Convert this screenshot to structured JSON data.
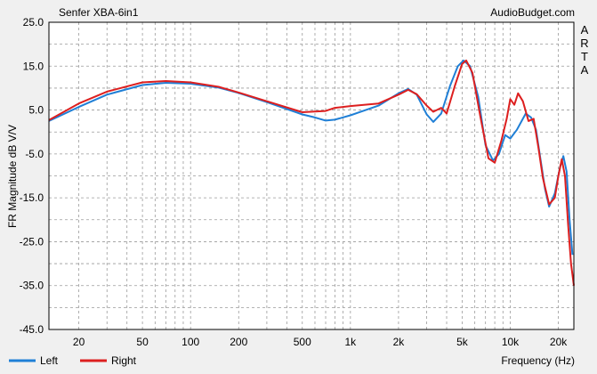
{
  "chart_data": {
    "type": "line",
    "title": "Senfer XBA-6in1",
    "source": "AudioBudget.com",
    "watermark": "ARTA",
    "ylabel": "FR Magnitude dB V/V",
    "xlabel": "Frequency (Hz)",
    "x_scale": "log",
    "xlim": [
      13,
      25000
    ],
    "ylim": [
      -45,
      25
    ],
    "grid": true,
    "legend_placement": "bottom-left",
    "y_ticks": [
      {
        "v": 25,
        "label": "25.0"
      },
      {
        "v": 15,
        "label": "15.0"
      },
      {
        "v": 5,
        "label": "5.0"
      },
      {
        "v": -5,
        "label": "-5.0"
      },
      {
        "v": -15,
        "label": "-15.0"
      },
      {
        "v": -25,
        "label": "-25.0"
      },
      {
        "v": -35,
        "label": "-35.0"
      },
      {
        "v": -45,
        "label": "-45.0"
      }
    ],
    "x_ticks": [
      {
        "v": 20,
        "label": "20"
      },
      {
        "v": 50,
        "label": "50"
      },
      {
        "v": 100,
        "label": "100"
      },
      {
        "v": 200,
        "label": "200"
      },
      {
        "v": 500,
        "label": "500"
      },
      {
        "v": 1000,
        "label": "1k"
      },
      {
        "v": 2000,
        "label": "2k"
      },
      {
        "v": 5000,
        "label": "5k"
      },
      {
        "v": 10000,
        "label": "10k"
      },
      {
        "v": 20000,
        "label": "20k"
      }
    ],
    "series": [
      {
        "name": "Left",
        "color": "#1f7fd6",
        "points": [
          [
            13,
            2.5
          ],
          [
            20,
            5.7
          ],
          [
            30,
            8.5
          ],
          [
            50,
            10.7
          ],
          [
            70,
            11.2
          ],
          [
            100,
            11.0
          ],
          [
            150,
            10.1
          ],
          [
            200,
            8.9
          ],
          [
            300,
            6.8
          ],
          [
            500,
            4.0
          ],
          [
            600,
            3.3
          ],
          [
            700,
            2.6
          ],
          [
            800,
            2.8
          ],
          [
            1000,
            3.8
          ],
          [
            1500,
            6.0
          ],
          [
            2000,
            8.8
          ],
          [
            2300,
            9.8
          ],
          [
            2600,
            8.5
          ],
          [
            3000,
            4.0
          ],
          [
            3300,
            2.3
          ],
          [
            3700,
            4.2
          ],
          [
            4200,
            10.5
          ],
          [
            4700,
            15.0
          ],
          [
            5100,
            16.3
          ],
          [
            5600,
            15.0
          ],
          [
            6300,
            8.0
          ],
          [
            7000,
            -3.0
          ],
          [
            7800,
            -6.5
          ],
          [
            8500,
            -5.0
          ],
          [
            9300,
            -0.7
          ],
          [
            10000,
            -1.5
          ],
          [
            11000,
            0.5
          ],
          [
            12500,
            4.2
          ],
          [
            13500,
            3.3
          ],
          [
            14500,
            0.5
          ],
          [
            15500,
            -6.5
          ],
          [
            16500,
            -13.0
          ],
          [
            17500,
            -17.0
          ],
          [
            19000,
            -14.0
          ],
          [
            20500,
            -8.0
          ],
          [
            21500,
            -5.5
          ],
          [
            22500,
            -9.0
          ],
          [
            23500,
            -20.0
          ],
          [
            24500,
            -28.0
          ]
        ]
      },
      {
        "name": "Right",
        "color": "#dd1f1f",
        "points": [
          [
            13,
            2.7
          ],
          [
            20,
            6.5
          ],
          [
            30,
            9.2
          ],
          [
            50,
            11.3
          ],
          [
            70,
            11.6
          ],
          [
            100,
            11.3
          ],
          [
            150,
            10.3
          ],
          [
            200,
            9.0
          ],
          [
            300,
            7.0
          ],
          [
            500,
            4.5
          ],
          [
            700,
            4.8
          ],
          [
            800,
            5.5
          ],
          [
            1000,
            5.9
          ],
          [
            1500,
            6.5
          ],
          [
            2000,
            8.5
          ],
          [
            2300,
            9.6
          ],
          [
            2600,
            8.6
          ],
          [
            3000,
            6.0
          ],
          [
            3300,
            4.6
          ],
          [
            3700,
            5.5
          ],
          [
            4000,
            4.2
          ],
          [
            4500,
            10.5
          ],
          [
            5000,
            15.5
          ],
          [
            5300,
            16.3
          ],
          [
            5800,
            13.5
          ],
          [
            6500,
            3.5
          ],
          [
            7300,
            -6.0
          ],
          [
            8000,
            -7.0
          ],
          [
            8800,
            -2.0
          ],
          [
            9500,
            3.0
          ],
          [
            10000,
            7.5
          ],
          [
            10600,
            6.2
          ],
          [
            11200,
            8.8
          ],
          [
            12000,
            7.0
          ],
          [
            13000,
            2.5
          ],
          [
            14000,
            3.0
          ],
          [
            15000,
            -3.5
          ],
          [
            16000,
            -10.5
          ],
          [
            17500,
            -16.5
          ],
          [
            19000,
            -15.0
          ],
          [
            20000,
            -10.0
          ],
          [
            21000,
            -6.2
          ],
          [
            22000,
            -10.0
          ],
          [
            23000,
            -21.0
          ],
          [
            24000,
            -30.0
          ],
          [
            25000,
            -35.0
          ]
        ]
      }
    ]
  }
}
